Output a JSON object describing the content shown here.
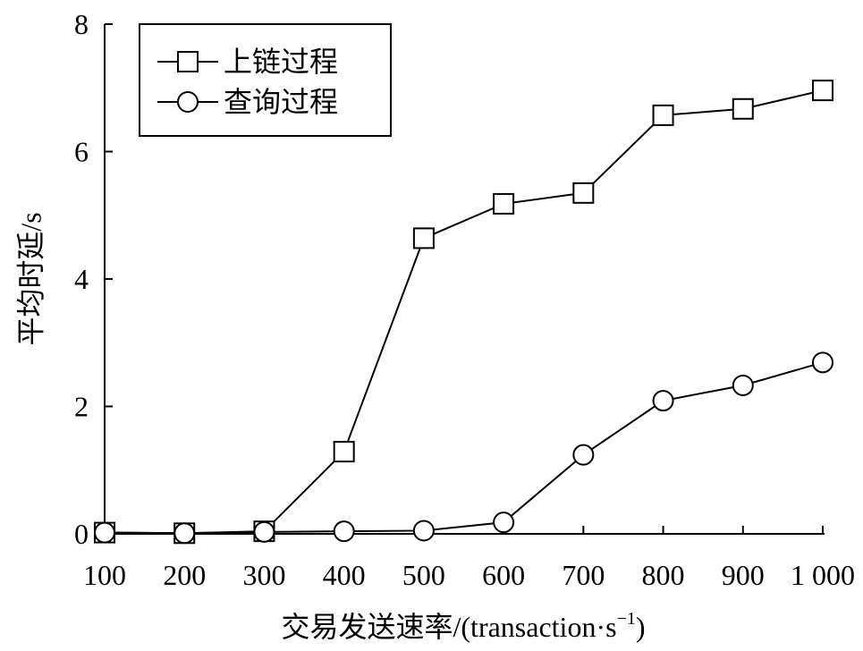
{
  "chart_data": {
    "type": "line",
    "title": "",
    "xlabel": "交易发送速率/(transaction·s",
    "xlabel_sup": "−1",
    "xlabel_close": ")",
    "ylabel": "平均时延/s",
    "x": [
      100,
      200,
      300,
      400,
      500,
      600,
      700,
      800,
      900,
      1000
    ],
    "x_tick_labels": [
      "100",
      "200",
      "300",
      "400",
      "500",
      "600",
      "700",
      "800",
      "900",
      "1 000"
    ],
    "y_ticks": [
      0,
      2,
      4,
      6,
      8
    ],
    "y_tick_labels": [
      "0",
      "2",
      "4",
      "6",
      "8"
    ],
    "ylim": [
      0,
      8
    ],
    "grid": false,
    "legend_position": "top-left",
    "series": [
      {
        "name": "上链过程",
        "marker": "square",
        "values": [
          0.02,
          0.01,
          0.04,
          1.29,
          4.64,
          5.18,
          5.35,
          6.57,
          6.67,
          6.96
        ]
      },
      {
        "name": "查询过程",
        "marker": "circle",
        "values": [
          0.02,
          0.01,
          0.03,
          0.04,
          0.05,
          0.18,
          1.24,
          2.09,
          2.33,
          2.69
        ]
      }
    ]
  }
}
